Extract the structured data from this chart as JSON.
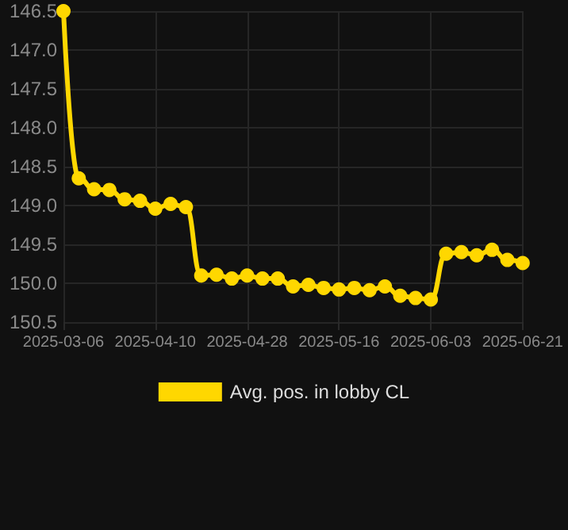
{
  "chart_data": {
    "type": "line",
    "categories": [
      "2025-03-06",
      null,
      null,
      null,
      null,
      null,
      "2025-04-10",
      null,
      null,
      null,
      null,
      null,
      "2025-04-28",
      null,
      null,
      null,
      null,
      null,
      "2025-05-16",
      null,
      null,
      null,
      null,
      null,
      "2025-06-03",
      null,
      null,
      null,
      null,
      null,
      "2025-06-21"
    ],
    "series": [
      {
        "name": "Avg. pos. in lobby CL",
        "color": "#ffd700",
        "values": [
          146.5,
          148.65,
          148.79,
          148.8,
          148.92,
          148.94,
          149.04,
          148.98,
          149.02,
          149.9,
          149.89,
          149.94,
          149.9,
          149.94,
          149.94,
          150.04,
          150.02,
          150.06,
          150.08,
          150.06,
          150.09,
          150.04,
          150.16,
          150.19,
          150.21,
          149.62,
          149.6,
          149.64,
          149.57,
          149.7,
          149.74
        ]
      }
    ],
    "ylim": [
      150.5,
      146.5
    ],
    "yticks": [
      {
        "value": 146.5,
        "label": "146.5"
      },
      {
        "value": 147,
        "label": "147.0"
      },
      {
        "value": 147.5,
        "label": "147.5"
      },
      {
        "value": 148,
        "label": "148.0"
      },
      {
        "value": 148.5,
        "label": "148.5"
      },
      {
        "value": 149,
        "label": "149.0"
      },
      {
        "value": 149.5,
        "label": "149.5"
      },
      {
        "value": 150,
        "label": "150.0"
      },
      {
        "value": 150.5,
        "label": "150.5"
      }
    ],
    "grid": true,
    "legend": "bottom",
    "marker": "circle",
    "line_style": "solid"
  }
}
